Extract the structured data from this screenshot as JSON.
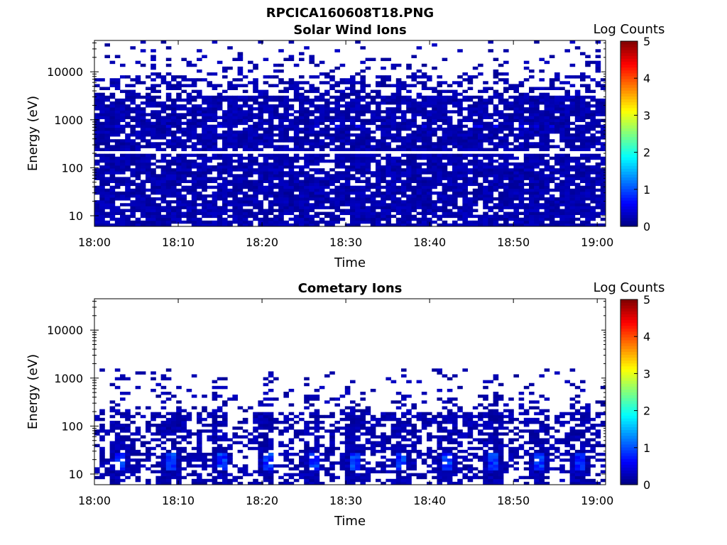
{
  "figure": {
    "title": "RPCICA160608T18.PNG"
  },
  "chart_data": [
    {
      "type": "heatmap",
      "title": "Solar Wind Ions",
      "xlabel": "Time",
      "ylabel": "Energy (eV)",
      "x_ticks": [
        "18:00",
        "18:10",
        "18:20",
        "18:30",
        "18:40",
        "18:50",
        "19:00"
      ],
      "x_range": [
        "18:00",
        "19:01"
      ],
      "y_scale": "log",
      "y_ticks": [
        "10",
        "100",
        "1000",
        "10000"
      ],
      "y_range": [
        6,
        45000
      ],
      "colorbar": {
        "label": "Log Counts",
        "range": [
          0,
          5
        ],
        "ticks": [
          "0",
          "1",
          "2",
          "3",
          "4",
          "5"
        ],
        "colormap": "jet"
      },
      "description": "Dense low-count (~0-0.3 log counts) coverage from ~6 eV to ~10000 eV, sparse up to ~30000 eV, white gap at ~200 eV, slightly higher counts (~0.5) near 700 eV"
    },
    {
      "type": "heatmap",
      "title": "Cometary Ions",
      "xlabel": "Time",
      "ylabel": "Energy (eV)",
      "x_ticks": [
        "18:00",
        "18:10",
        "18:20",
        "18:30",
        "18:40",
        "18:50",
        "19:00"
      ],
      "x_range": [
        "18:00",
        "19:01"
      ],
      "y_scale": "log",
      "y_ticks": [
        "10",
        "100",
        "1000",
        "10000"
      ],
      "y_range": [
        6,
        45000
      ],
      "colorbar": {
        "label": "Log Counts",
        "range": [
          0,
          5
        ],
        "ticks": [
          "0",
          "1",
          "2",
          "3",
          "4",
          "5"
        ],
        "colormap": "jet"
      },
      "description": "Counts concentrated below ~1000 eV; periodic enhancements (~0.6-1.0 log counts) near 10-20 eV roughly every 3.5 minutes"
    }
  ]
}
